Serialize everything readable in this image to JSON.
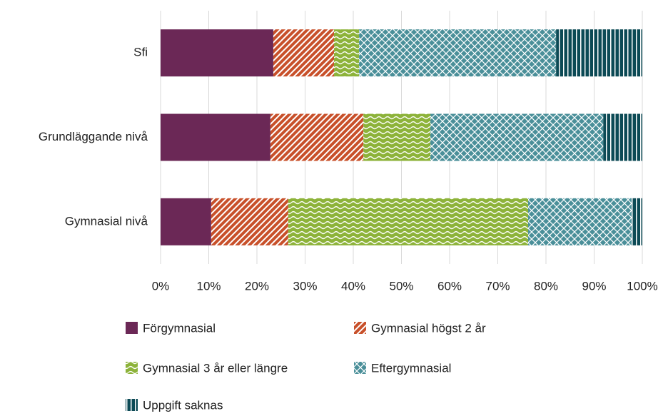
{
  "chart_data": {
    "type": "stacked-barh",
    "categories": [
      "Sfi",
      "Grundläggande nivå",
      "Gymnasial nivå"
    ],
    "series": [
      {
        "name": "Förgymnasial",
        "color": "#6b2856",
        "pattern": "solid",
        "values": [
          23.4,
          22.8,
          10.5
        ]
      },
      {
        "name": "Gymnasial högst 2 år",
        "color": "#c8502a",
        "pattern": "diagonal",
        "values": [
          12.6,
          19.3,
          16.0
        ]
      },
      {
        "name": "Gymnasial 3 år eller längre",
        "color": "#8db33a",
        "pattern": "wave",
        "values": [
          5.2,
          13.9,
          49.8
        ]
      },
      {
        "name": "Eftergymnasial",
        "color": "#4a8f99",
        "pattern": "cross",
        "values": [
          40.9,
          35.9,
          21.5
        ]
      },
      {
        "name": "Uppgift saknas",
        "color": "#0c4a55",
        "pattern": "vertical",
        "values": [
          17.9,
          8.1,
          2.2
        ]
      }
    ],
    "xlim": [
      0,
      100
    ],
    "xticks": [
      {
        "value": 0,
        "label": "0%"
      },
      {
        "value": 10,
        "label": "10%"
      },
      {
        "value": 20,
        "label": "20%"
      },
      {
        "value": 30,
        "label": "30%"
      },
      {
        "value": 40,
        "label": "40%"
      },
      {
        "value": 50,
        "label": "50%"
      },
      {
        "value": 60,
        "label": "60%"
      },
      {
        "value": 70,
        "label": "70%"
      },
      {
        "value": 80,
        "label": "80%"
      },
      {
        "value": 90,
        "label": "90%"
      },
      {
        "value": 100,
        "label": "100%"
      }
    ],
    "grid": true
  }
}
